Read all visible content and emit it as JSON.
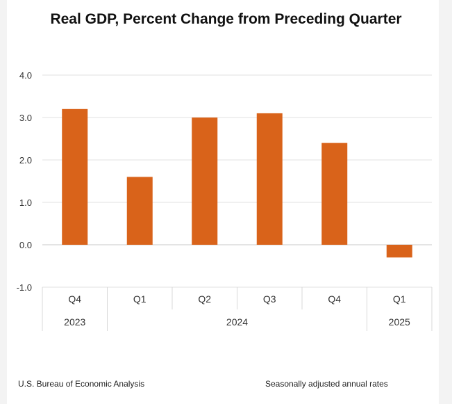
{
  "chart_data": {
    "type": "bar",
    "title": "Real GDP, Percent Change from Preceding Quarter",
    "categories": [
      "Q4",
      "Q1",
      "Q2",
      "Q3",
      "Q4",
      "Q1"
    ],
    "groups": [
      {
        "label": "2023",
        "count": 1
      },
      {
        "label": "2024",
        "count": 4
      },
      {
        "label": "2025",
        "count": 1
      }
    ],
    "values": [
      3.2,
      1.6,
      3.0,
      3.1,
      2.4,
      -0.3
    ],
    "ylim": [
      -1.0,
      4.0
    ],
    "yticks": [
      "4.0",
      "3.0",
      "2.0",
      "1.0",
      "0.0",
      "-1.0"
    ],
    "xlabel": "",
    "ylabel": "",
    "grid": true,
    "bar_color": "#d9631a"
  },
  "footer": {
    "source": "U.S. Bureau of Economic Analysis",
    "note": "Seasonally adjusted annual rates"
  }
}
